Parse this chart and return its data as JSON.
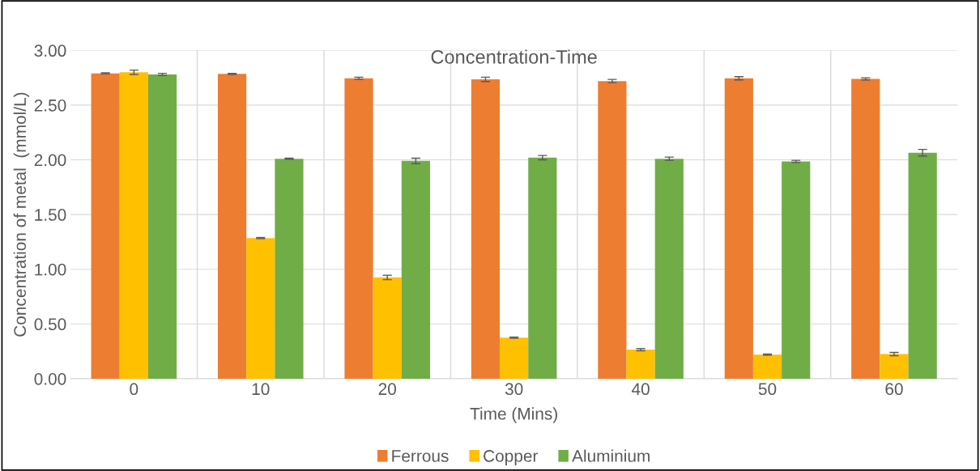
{
  "chart_data": {
    "type": "bar",
    "title": "Concentration-Time",
    "xlabel": "Time (Mins)",
    "ylabel": "Concentration of metal  (mmol/L)",
    "categories": [
      "0",
      "10",
      "20",
      "30",
      "40",
      "50",
      "60"
    ],
    "series": [
      {
        "name": "Ferrous",
        "color": "#ed7d31",
        "values": [
          2.79,
          2.785,
          2.745,
          2.735,
          2.72,
          2.745,
          2.74
        ],
        "errors": [
          0.005,
          0.005,
          0.01,
          0.02,
          0.015,
          0.015,
          0.01
        ]
      },
      {
        "name": "Copper",
        "color": "#ffc000",
        "values": [
          2.8,
          1.285,
          0.925,
          0.375,
          0.265,
          0.22,
          0.225
        ],
        "errors": [
          0.02,
          0.005,
          0.02,
          0.005,
          0.01,
          0.005,
          0.015
        ]
      },
      {
        "name": "Aluminium",
        "color": "#70ad47",
        "values": [
          2.78,
          2.01,
          1.99,
          2.02,
          2.01,
          1.985,
          2.065
        ],
        "errors": [
          0.01,
          0.005,
          0.025,
          0.02,
          0.015,
          0.01,
          0.03
        ]
      }
    ],
    "ylim": [
      0,
      3
    ],
    "yticks": [
      {
        "value": 0,
        "label": "0.00"
      },
      {
        "value": 0.5,
        "label": "0.50"
      },
      {
        "value": 1,
        "label": "1.00"
      },
      {
        "value": 1.5,
        "label": "1.50"
      },
      {
        "value": 2,
        "label": "2.00"
      },
      {
        "value": 2.5,
        "label": "2.50"
      },
      {
        "value": 3,
        "label": "3.00"
      }
    ],
    "grid": true,
    "legend": "bottom"
  }
}
